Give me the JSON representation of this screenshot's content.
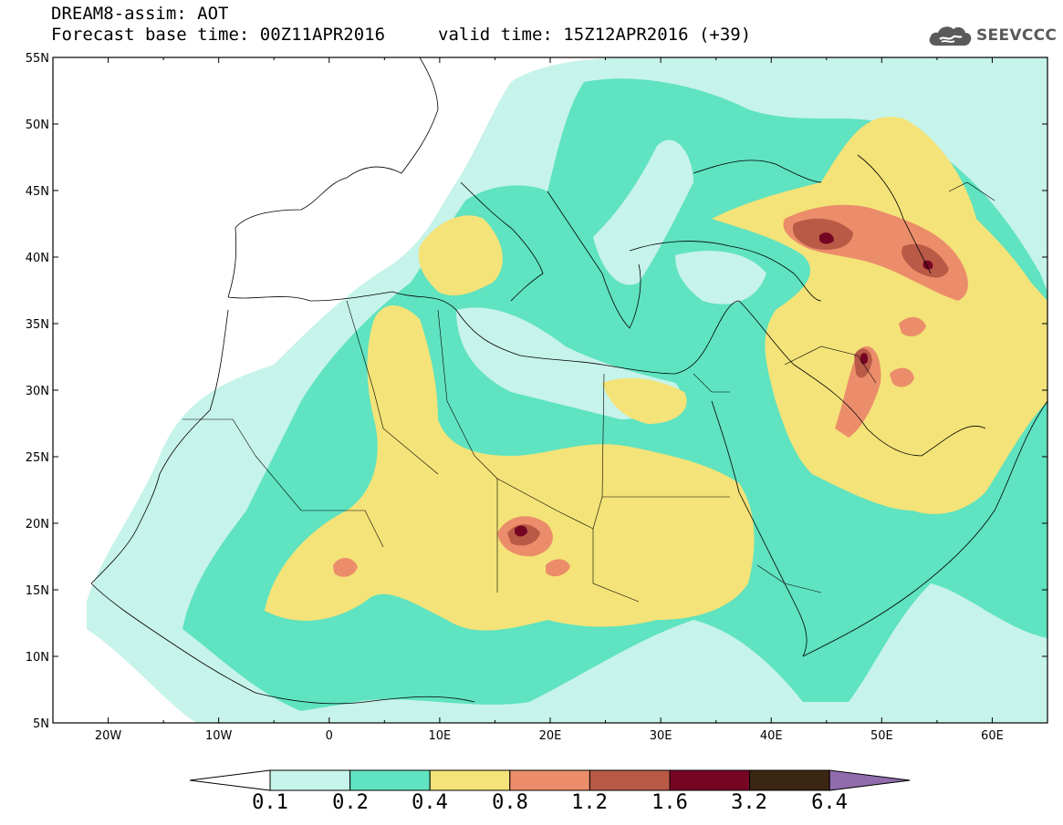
{
  "header": {
    "model_line": "DREAM8-assim: AOT",
    "base_time": "Forecast base time: 00Z11APR2016",
    "valid_time": "valid time: 15Z12APR2016 (+39)"
  },
  "logo": {
    "text": "SEEVCCC",
    "icon": "cloud-icon"
  },
  "map": {
    "lon_range": [
      -25,
      65
    ],
    "lat_range": [
      5,
      55
    ],
    "lon_ticks": [
      "20W",
      "10W",
      "0",
      "10E",
      "20E",
      "30E",
      "40E",
      "50E",
      "60E"
    ],
    "lat_ticks": [
      "55N",
      "50N",
      "45N",
      "40N",
      "35N",
      "30N",
      "25N",
      "20N",
      "15N",
      "10N",
      "5N"
    ]
  },
  "legend": {
    "levels": [
      "0.1",
      "0.2",
      "0.4",
      "0.8",
      "1.2",
      "1.6",
      "3.2",
      "6.4"
    ],
    "colors": [
      "#ffffff",
      "#c6f3ea",
      "#5fe3c0",
      "#f4e378",
      "#eb8d6a",
      "#b95a47",
      "#760524",
      "#3b2614",
      "#906cad"
    ]
  }
}
